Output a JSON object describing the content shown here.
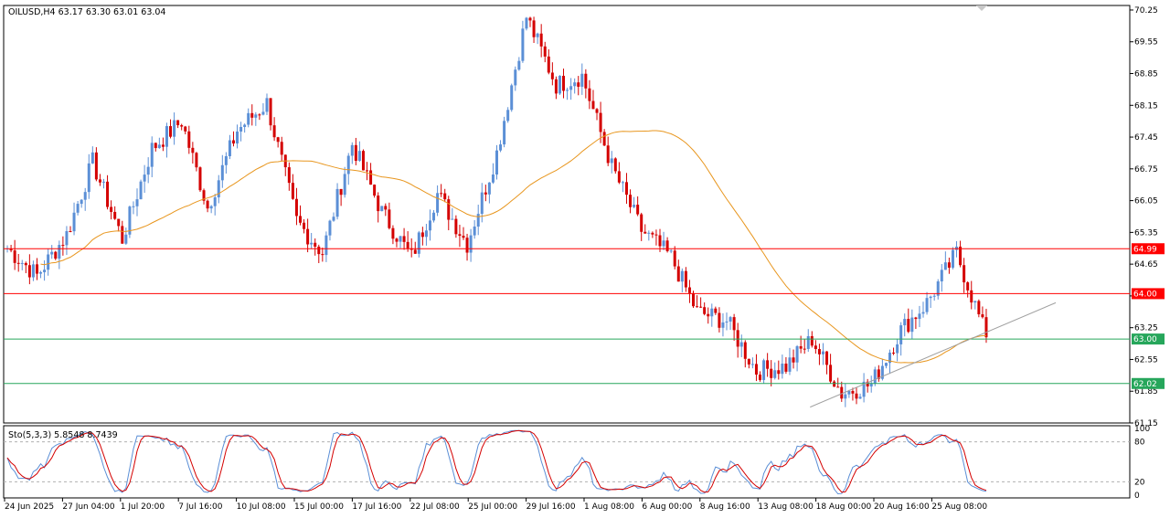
{
  "chart_data": [
    {
      "type": "candlestick",
      "title": "OILUSD,H4  63.17 63.30 63.01 63.04",
      "symbol": "OILUSD",
      "timeframe": "H4",
      "ohlc_last": [
        63.17,
        63.3,
        63.01,
        63.04
      ],
      "ylim": [
        61.15,
        70.35
      ],
      "y_ticks": [
        70.25,
        69.55,
        68.85,
        68.15,
        67.45,
        66.75,
        66.05,
        65.35,
        64.65,
        63.95,
        63.25,
        62.55,
        61.85,
        61.15
      ],
      "x_tick_labels": [
        "24 Jun 2025",
        "27 Jun 04:00",
        "1 Jul 20:00",
        "7 Jul 16:00",
        "10 Jul 08:00",
        "15 Jul 00:00",
        "17 Jul 16:00",
        "22 Jul 08:00",
        "25 Jul 00:00",
        "29 Jul 16:00",
        "1 Aug 08:00",
        "6 Aug 00:00",
        "8 Aug 16:00",
        "13 Aug 08:00",
        "18 Aug 00:00",
        "20 Aug 16:00",
        "25 Aug 08:00"
      ],
      "horizontal_levels": [
        {
          "value": 64.99,
          "label": "64.99",
          "color": "#ff0000"
        },
        {
          "value": 64.0,
          "label": "64.00",
          "color": "#ff0000"
        },
        {
          "value": 63.0,
          "label": "63.00",
          "color": "#26a65b"
        },
        {
          "value": 62.02,
          "label": "62.02",
          "color": "#26a65b"
        }
      ],
      "trendline": {
        "from": [
          "18 Aug 00:00",
          61.5
        ],
        "to": [
          "26 Aug",
          63.8
        ],
        "color": "#a0a0a0"
      },
      "moving_average_color": "#e8961e",
      "bull_color": "#5b8fd6",
      "bear_color": "#d40000",
      "close_path": [
        [
          "24 Jun 2025",
          65.0
        ],
        [
          "27 Jun 04:00",
          64.4
        ],
        [
          "1 Jul 20:00",
          65.3
        ],
        [
          "2 Jul",
          66.9
        ],
        [
          "3 Jul",
          65.2
        ],
        [
          "7 Jul 16:00",
          67.2
        ],
        [
          "8 Jul",
          67.8
        ],
        [
          "10 Jul 08:00",
          65.9
        ],
        [
          "11 Jul",
          67.6
        ],
        [
          "14 Jul",
          68.2
        ],
        [
          "15 Jul 00:00",
          65.6
        ],
        [
          "16 Jul",
          64.9
        ],
        [
          "17 Jul 16:00",
          67.3
        ],
        [
          "21 Jul",
          65.8
        ],
        [
          "22 Jul 08:00",
          64.8
        ],
        [
          "24 Jul",
          66.2
        ],
        [
          "25 Jul 00:00",
          65.1
        ],
        [
          "28 Jul",
          67.1
        ],
        [
          "29 Jul 16:00",
          70.1
        ],
        [
          "30 Jul",
          68.6
        ],
        [
          "31 Jul",
          68.8
        ],
        [
          "1 Aug 08:00",
          66.8
        ],
        [
          "4 Aug",
          65.4
        ],
        [
          "6 Aug 00:00",
          64.8
        ],
        [
          "7 Aug",
          63.6
        ],
        [
          "8 Aug 16:00",
          63.4
        ],
        [
          "12 Aug",
          62.3
        ],
        [
          "13 Aug 08:00",
          62.4
        ],
        [
          "14 Aug",
          63.0
        ],
        [
          "18 Aug 00:00",
          61.8
        ],
        [
          "19 Aug",
          62.0
        ],
        [
          "20 Aug 16:00",
          63.2
        ],
        [
          "22 Aug",
          63.8
        ],
        [
          "25 Aug 08:00",
          64.9
        ],
        [
          "26 Aug",
          63.04
        ]
      ]
    },
    {
      "type": "line",
      "title": "Sto(5,3,3) 5.8548 8.7439",
      "indicator": "Sto(5,3,3)",
      "values_last": [
        5.8548,
        8.7439
      ],
      "ylim": [
        0,
        100
      ],
      "y_ticks": [
        100,
        80,
        20,
        0
      ],
      "levels": [
        80,
        20
      ],
      "series_colors": {
        "main": "#5b8fd6",
        "signal": "#d40000"
      }
    }
  ]
}
